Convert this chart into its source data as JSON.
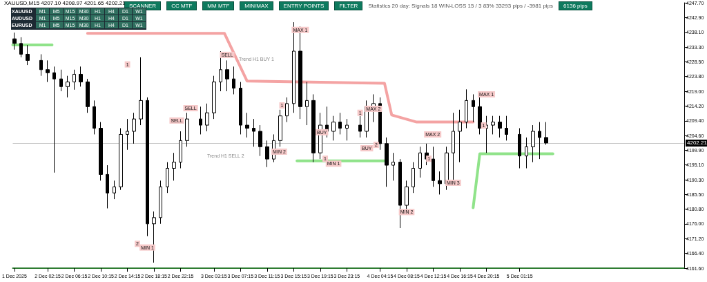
{
  "chart_data": {
    "type": "candlestick",
    "title": "XAUUSD,M15  4207.10 4208.97 4201.65 4202.21",
    "xlim": [
      "2025-12-01T21:00",
      "2025-12-06T02:00"
    ],
    "xticks": [
      {
        "value": "2025-12-01T21:15",
        "label": "1 Dec 2025"
      },
      {
        "value": "2025-12-02T02:15",
        "label": "2 Dec 02:15"
      },
      {
        "value": "2025-12-02T06:15",
        "label": "2 Dec 06:15"
      },
      {
        "value": "2025-12-02T10:15",
        "label": "2 Dec 10:15"
      },
      {
        "value": "2025-12-02T14:15",
        "label": "2 Dec 14:15"
      },
      {
        "value": "2025-12-02T18:15",
        "label": "2 Dec 18:15"
      },
      {
        "value": "2025-12-02T22:15",
        "label": "2 Dec 22:15"
      },
      {
        "value": "2025-12-03T03:15",
        "label": "3 Dec 03:15"
      },
      {
        "value": "2025-12-03T07:15",
        "label": "3 Dec 07:15"
      },
      {
        "value": "2025-12-03T11:15",
        "label": "3 Dec 11:15"
      },
      {
        "value": "2025-12-03T15:15",
        "label": "3 Dec 15:15"
      },
      {
        "value": "2025-12-03T19:15",
        "label": "3 Dec 19:15"
      },
      {
        "value": "2025-12-03T23:15",
        "label": "3 Dec 23:15"
      },
      {
        "value": "2025-12-04T04:15",
        "label": "4 Dec 04:15"
      },
      {
        "value": "2025-12-04T08:15",
        "label": "4 Dec 08:15"
      },
      {
        "value": "2025-12-04T12:15",
        "label": "4 Dec 12:15"
      },
      {
        "value": "2025-12-04T16:15",
        "label": "4 Dec 16:15"
      },
      {
        "value": "2025-12-04T20:15",
        "label": "4 Dec 20:15"
      },
      {
        "value": "2025-12-05T01:15",
        "label": "5 Dec 01:15"
      }
    ],
    "ylim": [
      4161.6,
      4247.7
    ],
    "yticks": [
      {
        "value": 4247.7,
        "label": "4247.70"
      },
      {
        "value": 4242.9,
        "label": "4242.90"
      },
      {
        "value": 4238.1,
        "label": "4238.10"
      },
      {
        "value": 4233.3,
        "label": "4233.30"
      },
      {
        "value": 4228.5,
        "label": "4228.50"
      },
      {
        "value": 4223.8,
        "label": "4223.80"
      },
      {
        "value": 4219.0,
        "label": "4219.00"
      },
      {
        "value": 4214.2,
        "label": "4214.20"
      },
      {
        "value": 4209.4,
        "label": "4209.40"
      },
      {
        "value": 4204.6,
        "label": "4204.60"
      },
      {
        "value": 4199.9,
        "label": "4199.90"
      },
      {
        "value": 4195.1,
        "label": "4195.10"
      },
      {
        "value": 4190.3,
        "label": "4190.30"
      },
      {
        "value": 4185.5,
        "label": "4185.50"
      },
      {
        "value": 4180.8,
        "label": "4180.80"
      },
      {
        "value": 4176.0,
        "label": "4176.00"
      },
      {
        "value": 4171.2,
        "label": "4171.20"
      },
      {
        "value": 4166.4,
        "label": "4166.40"
      },
      {
        "value": 4161.6,
        "label": "4161.60"
      }
    ],
    "grid": false,
    "ref_lines": [
      {
        "axis": "y",
        "value": 4202.21,
        "label": "4202.21",
        "color": "#c8c8c8"
      }
    ],
    "series": [
      {
        "color": "#000000",
        "x": [
          "2025-12-01T21:15",
          "2025-12-01T22:15",
          "2025-12-01T23:15",
          "2025-12-02T01:15",
          "2025-12-02T02:15",
          "2025-12-02T03:15",
          "2025-12-02T04:15",
          "2025-12-02T05:15",
          "2025-12-02T06:15",
          "2025-12-02T07:15",
          "2025-12-02T08:15",
          "2025-12-02T09:15",
          "2025-12-02T10:15",
          "2025-12-02T11:15",
          "2025-12-02T12:15",
          "2025-12-02T13:15",
          "2025-12-02T14:15",
          "2025-12-02T15:15",
          "2025-12-02T16:15",
          "2025-12-02T17:15",
          "2025-12-02T18:15",
          "2025-12-02T19:15",
          "2025-12-02T20:15",
          "2025-12-02T21:15",
          "2025-12-02T22:15",
          "2025-12-02T23:15",
          "2025-12-03T01:15",
          "2025-12-03T02:15",
          "2025-12-03T03:15",
          "2025-12-03T04:15",
          "2025-12-03T05:15",
          "2025-12-03T06:15",
          "2025-12-03T07:15",
          "2025-12-03T08:15",
          "2025-12-03T09:15",
          "2025-12-03T10:15",
          "2025-12-03T11:15",
          "2025-12-03T12:15",
          "2025-12-03T13:15",
          "2025-12-03T14:15",
          "2025-12-03T15:15",
          "2025-12-03T16:15",
          "2025-12-03T17:15",
          "2025-12-03T18:15",
          "2025-12-03T19:15",
          "2025-12-03T20:15",
          "2025-12-03T21:15",
          "2025-12-03T22:15",
          "2025-12-03T23:15",
          "2025-12-04T01:15",
          "2025-12-04T02:15",
          "2025-12-04T03:15",
          "2025-12-04T04:15",
          "2025-12-04T05:15",
          "2025-12-04T06:15",
          "2025-12-04T07:15",
          "2025-12-04T08:15",
          "2025-12-04T09:15",
          "2025-12-04T10:15",
          "2025-12-04T11:15",
          "2025-12-04T12:15",
          "2025-12-04T13:15",
          "2025-12-04T14:15",
          "2025-12-04T15:15",
          "2025-12-04T16:15",
          "2025-12-04T17:15",
          "2025-12-04T18:15",
          "2025-12-04T19:15",
          "2025-12-04T20:15",
          "2025-12-04T21:15",
          "2025-12-04T22:15",
          "2025-12-04T23:15",
          "2025-12-05T01:15",
          "2025-12-05T02:15",
          "2025-12-05T03:15",
          "2025-12-05T04:15",
          "2025-12-05T05:15"
        ],
        "ohlc": [
          [
            4236.0,
            4238.0,
            4232.5,
            4234.5
          ],
          [
            4234.5,
            4236.5,
            4230.0,
            4231.0
          ],
          [
            4231.0,
            4234.0,
            4227.5,
            4229.0
          ],
          [
            4229.0,
            4231.0,
            4224.0,
            4226.0
          ],
          [
            4226.0,
            4229.0,
            4222.0,
            4225.0
          ],
          [
            4225.0,
            4227.0,
            4192.6,
            4223.0
          ],
          [
            4223.0,
            4226.0,
            4219.0,
            4220.5
          ],
          [
            4220.5,
            4224.0,
            4217.0,
            4222.0
          ],
          [
            4222.0,
            4226.0,
            4219.5,
            4224.5
          ],
          [
            4224.5,
            4227.0,
            4220.5,
            4222.0
          ],
          [
            4222.0,
            4223.0,
            4212.0,
            4214.0
          ],
          [
            4214.0,
            4216.0,
            4205.0,
            4207.0
          ],
          [
            4207.0,
            4209.0,
            4190.0,
            4192.0
          ],
          [
            4192.0,
            4195.0,
            4181.0,
            4186.0
          ],
          [
            4186.0,
            4190.0,
            4184.0,
            4188.0
          ],
          [
            4188.0,
            4207.0,
            4187.0,
            4205.0
          ],
          [
            4205.0,
            4210.0,
            4200.0,
            4206.0
          ],
          [
            4206.0,
            4212.0,
            4202.0,
            4210.0
          ],
          [
            4210.0,
            4230.0,
            4208.0,
            4216.0
          ],
          [
            4216.0,
            4217.0,
            4172.0,
            4176.0
          ],
          [
            4176.0,
            4180.0,
            4163.4,
            4178.0
          ],
          [
            4178.0,
            4190.0,
            4176.0,
            4188.0
          ],
          [
            4188.0,
            4196.0,
            4186.0,
            4194.0
          ],
          [
            4194.0,
            4199.0,
            4190.0,
            4196.0
          ],
          [
            4196.0,
            4206.0,
            4194.0,
            4203.0
          ],
          [
            4203.0,
            4212.0,
            4201.0,
            4210.0
          ],
          [
            4210.0,
            4214.0,
            4205.0,
            4208.0
          ],
          [
            4208.0,
            4215.0,
            4206.0,
            4212.0
          ],
          [
            4212.0,
            4224.0,
            4210.0,
            4222.0
          ],
          [
            4222.0,
            4232.0,
            4219.0,
            4226.0
          ],
          [
            4226.0,
            4229.0,
            4219.0,
            4223.0
          ],
          [
            4223.0,
            4227.0,
            4218.0,
            4220.0
          ],
          [
            4220.0,
            4222.0,
            4205.0,
            4208.0
          ],
          [
            4208.0,
            4212.0,
            4204.0,
            4207.0
          ],
          [
            4207.0,
            4210.0,
            4201.0,
            4206.0
          ],
          [
            4206.0,
            4208.0,
            4198.0,
            4201.0
          ],
          [
            4201.0,
            4203.0,
            4194.4,
            4197.0
          ],
          [
            4197.0,
            4205.0,
            4196.0,
            4203.0
          ],
          [
            4203.0,
            4213.0,
            4201.0,
            4211.0
          ],
          [
            4211.0,
            4217.0,
            4209.0,
            4215.0
          ],
          [
            4215.0,
            4241.4,
            4212.0,
            4232.0
          ],
          [
            4232.0,
            4240.0,
            4210.0,
            4214.0
          ],
          [
            4214.0,
            4222.0,
            4208.0,
            4216.0
          ],
          [
            4216.0,
            4218.0,
            4196.0,
            4199.0
          ],
          [
            4199.0,
            4212.0,
            4197.0,
            4208.0
          ],
          [
            4208.0,
            4214.0,
            4204.0,
            4206.0
          ],
          [
            4206.0,
            4211.0,
            4203.0,
            4209.0
          ],
          [
            4209.0,
            4212.0,
            4205.0,
            4207.0
          ],
          [
            4207.0,
            4210.0,
            4203.0,
            4208.0
          ],
          [
            4208.0,
            4211.0,
            4204.0,
            4206.0
          ],
          [
            4206.0,
            4216.0,
            4204.0,
            4214.0
          ],
          [
            4214.0,
            4218.0,
            4209.0,
            4215.0
          ],
          [
            4215.0,
            4217.0,
            4200.0,
            4202.0
          ],
          [
            4202.0,
            4204.0,
            4188.0,
            4195.0
          ],
          [
            4195.0,
            4199.0,
            4190.0,
            4196.0
          ],
          [
            4196.0,
            4197.0,
            4174.6,
            4182.0
          ],
          [
            4182.0,
            4190.0,
            4179.0,
            4188.0
          ],
          [
            4188.0,
            4196.0,
            4186.0,
            4194.0
          ],
          [
            4194.0,
            4201.0,
            4191.0,
            4199.0
          ],
          [
            4199.0,
            4202.0,
            4195.0,
            4197.0
          ],
          [
            4197.0,
            4201.0,
            4188.0,
            4190.0
          ],
          [
            4190.0,
            4193.0,
            4185.5,
            4189.0
          ],
          [
            4189.0,
            4201.0,
            4187.0,
            4199.0
          ],
          [
            4199.0,
            4212.0,
            4190.0,
            4206.0
          ],
          [
            4206.0,
            4213.0,
            4196.0,
            4209.0
          ],
          [
            4209.0,
            4219.6,
            4207.0,
            4216.0
          ],
          [
            4216.0,
            4218.0,
            4209.0,
            4214.0
          ],
          [
            4214.0,
            4217.0,
            4205.0,
            4207.0
          ],
          [
            4207.0,
            4211.0,
            4199.0,
            4208.0
          ],
          [
            4208.0,
            4211.0,
            4205.0,
            4209.0
          ],
          [
            4209.0,
            4211.0,
            4204.0,
            4207.0
          ],
          [
            4207.0,
            4211.0,
            4203.0,
            4205.0
          ],
          [
            4205.0,
            4207.0,
            4194.0,
            4198.0
          ],
          [
            4198.0,
            4204.0,
            4194.0,
            4201.0
          ],
          [
            4201.0,
            4208.0,
            4196.0,
            4206.0
          ],
          [
            4206.0,
            4209.0,
            4197.0,
            4204.0
          ],
          [
            4204.0,
            4209.0,
            4201.65,
            4202.21
          ]
        ]
      },
      {
        "type": "line",
        "color": "#f4a3a3",
        "x": [
          "2025-12-02T08:15",
          "2025-12-03T04:50",
          "2025-12-03T08:15",
          "2025-12-04T04:55",
          "2025-12-04T06:00",
          "2025-12-04T09:45",
          "2025-12-04T18:15"
        ],
        "values": [
          4237.8,
          4237.8,
          4222.3,
          4221.6,
          4211.3,
          4209.0,
          4209.0
        ]
      },
      {
        "type": "line",
        "color": "#90e38a",
        "x": [
          "2025-12-01T21:00",
          "2025-12-02T02:55"
        ],
        "values": [
          4234.0,
          4234.0
        ]
      },
      {
        "type": "line",
        "color": "#90e38a",
        "x": [
          "2025-12-03T15:45",
          "2025-12-04T05:00"
        ],
        "values": [
          4196.4,
          4196.4
        ]
      },
      {
        "type": "line",
        "color": "#90e38a",
        "x": [
          "2025-12-04T18:15",
          "2025-12-04T19:15",
          "2025-12-05T06:15"
        ],
        "values": [
          4181.2,
          4198.7,
          4198.7
        ]
      }
    ],
    "annotations": [
      "SCANNER",
      "CC MTF",
      "MM MTF",
      "MIN/MAX",
      "ENTRY POINTS",
      "FILTER",
      "Statistics 20 day:  Signals 18  WIN-LOSS 15 / 3  83%  33293 pips / -3981 pips",
      "6136 pips",
      "Trend H1 BUY 1",
      "Trend H1 SELL 2",
      "XAUUSD M1 M5 M15 M30 H1 H4 D1 W1",
      "AUDUSD M1 M5 M15 M30 H1 H4 D1 W1",
      "EURUSD M1 M5 M15 M30 H1 H4 D1 W1",
      {
        "text": "MAX 1",
        "x": "2025-12-03T16:15",
        "y": 4238.9
      },
      {
        "text": "MAX 2",
        "x": "2025-12-04T03:15",
        "y": 4213.3
      },
      {
        "text": "MAX 2",
        "x": "2025-12-04T12:10",
        "y": 4205.0
      },
      {
        "text": "MAX 1",
        "x": "2025-12-04T20:15",
        "y": 4218.0
      },
      {
        "text": "MIN 1",
        "x": "2025-12-02T17:15",
        "y": 4168.3
      },
      {
        "text": "MIN 2",
        "x": "2025-12-03T13:05",
        "y": 4199.4
      },
      {
        "text": "MIN 1",
        "x": "2025-12-03T21:15",
        "y": 4195.5
      },
      {
        "text": "MIN 2",
        "x": "2025-12-04T08:15",
        "y": 4179.8
      },
      {
        "text": "MIN 3",
        "x": "2025-12-04T15:15",
        "y": 4189.3
      },
      {
        "text": "SELL",
        "x": "2025-12-02T21:40",
        "y": 4209.5
      },
      {
        "text": "SELL",
        "x": "2025-12-02T23:45",
        "y": 4213.5
      },
      {
        "text": "SELL",
        "x": "2025-12-03T05:15",
        "y": 4230.8
      },
      {
        "text": "BUY",
        "x": "2025-12-03T19:30",
        "y": 4205.7
      },
      {
        "text": "BUY",
        "x": "2025-12-04T02:15",
        "y": 4200.5
      },
      {
        "text": "1",
        "x": "2025-12-02T14:15",
        "y": 4227.7
      },
      {
        "text": "2",
        "x": "2025-12-02T15:45",
        "y": 4169.5
      },
      {
        "text": "1",
        "x": "2025-12-03T13:30",
        "y": 4214.4
      },
      {
        "text": "1",
        "x": "2025-12-03T20:00",
        "y": 4197.1
      },
      {
        "text": "1",
        "x": "2025-12-04T01:15",
        "y": 4212.0
      },
      {
        "text": "2",
        "x": "2025-12-04T03:40",
        "y": 4201.6
      },
      {
        "text": "1",
        "x": "2025-12-04T11:35",
        "y": 4197.1
      },
      {
        "text": "1",
        "x": "2025-12-04T19:50",
        "y": 4207.9
      }
    ]
  }
}
